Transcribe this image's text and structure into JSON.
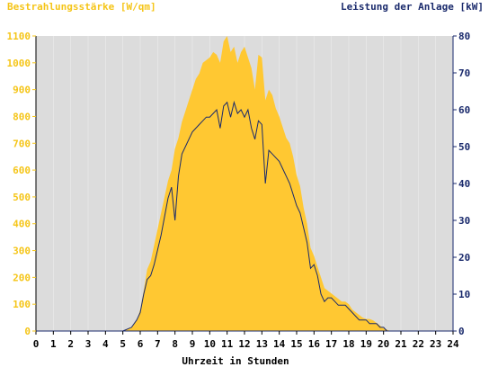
{
  "chart_data": {
    "type": "area",
    "title_left": "Bestrahlungsstärke [W/qm]",
    "title_right": "Leistung der Anlage [kW]",
    "xlabel": "Uhrzeit in Stunden",
    "xlim": [
      0,
      24
    ],
    "y_left_lim": [
      0,
      1100
    ],
    "y_right_lim": [
      0,
      80
    ],
    "x_ticks": [
      "0",
      "1",
      "2",
      "3",
      "4",
      "5",
      "6",
      "7",
      "8",
      "9",
      "10",
      "11",
      "12",
      "13",
      "14",
      "15",
      "16",
      "17",
      "18",
      "19",
      "20",
      "21",
      "22",
      "23",
      "24"
    ],
    "y_left_ticks": [
      "0",
      "100",
      "200",
      "300",
      "400",
      "500",
      "600",
      "700",
      "800",
      "900",
      "1000",
      "1100"
    ],
    "y_right_ticks": [
      "0",
      "10",
      "20",
      "30",
      "40",
      "50",
      "60",
      "70",
      "80"
    ],
    "colors": {
      "irradiance": "#ffc832",
      "power": "#1a2a6c",
      "plot_bg": "#dcdcdc",
      "left_axis": "#f5c518",
      "right_axis": "#1a2a6c"
    },
    "series": [
      {
        "name": "Bestrahlungsstärke [W/qm]",
        "axis": "left",
        "x": [
          0,
          5.0,
          5.5,
          5.8,
          6.0,
          6.2,
          6.4,
          6.6,
          6.8,
          7.0,
          7.2,
          7.4,
          7.6,
          7.8,
          8.0,
          8.2,
          8.4,
          8.6,
          8.8,
          9.0,
          9.2,
          9.4,
          9.6,
          9.8,
          10.0,
          10.2,
          10.4,
          10.6,
          10.8,
          11.0,
          11.2,
          11.4,
          11.6,
          11.8,
          12.0,
          12.2,
          12.4,
          12.6,
          12.8,
          13.0,
          13.2,
          13.4,
          13.6,
          13.8,
          14.0,
          14.2,
          14.4,
          14.6,
          14.8,
          15.0,
          15.2,
          15.4,
          15.6,
          15.8,
          16.0,
          16.2,
          16.4,
          16.6,
          16.8,
          17.0,
          17.2,
          17.4,
          17.6,
          17.8,
          18.0,
          18.2,
          18.4,
          18.6,
          18.8,
          19.0,
          19.2,
          19.4,
          19.6,
          19.8,
          20.0,
          20.2,
          20.4,
          21.0,
          24
        ],
        "values": [
          0,
          0,
          15,
          40,
          80,
          150,
          230,
          260,
          320,
          380,
          440,
          500,
          560,
          600,
          680,
          720,
          780,
          820,
          860,
          900,
          940,
          960,
          1000,
          1010,
          1020,
          1040,
          1030,
          1000,
          1080,
          1100,
          1040,
          1060,
          1000,
          1040,
          1060,
          1020,
          980,
          900,
          1030,
          1020,
          860,
          900,
          880,
          830,
          800,
          760,
          720,
          700,
          650,
          580,
          540,
          460,
          400,
          310,
          280,
          240,
          200,
          160,
          150,
          140,
          130,
          120,
          110,
          110,
          100,
          80,
          70,
          60,
          50,
          45,
          45,
          40,
          30,
          20,
          10,
          5,
          0,
          0,
          0
        ]
      },
      {
        "name": "Leistung der Anlage [kW]",
        "axis": "right",
        "x": [
          0,
          5.0,
          5.5,
          5.8,
          6.0,
          6.2,
          6.4,
          6.6,
          6.8,
          7.0,
          7.2,
          7.4,
          7.6,
          7.8,
          8.0,
          8.2,
          8.4,
          8.6,
          8.8,
          9.0,
          9.2,
          9.4,
          9.6,
          9.8,
          10.0,
          10.2,
          10.4,
          10.6,
          10.8,
          11.0,
          11.2,
          11.4,
          11.6,
          11.8,
          12.0,
          12.2,
          12.4,
          12.6,
          12.8,
          13.0,
          13.2,
          13.4,
          13.6,
          13.8,
          14.0,
          14.2,
          14.4,
          14.6,
          14.8,
          15.0,
          15.2,
          15.4,
          15.6,
          15.8,
          16.0,
          16.2,
          16.4,
          16.6,
          16.8,
          17.0,
          17.2,
          17.4,
          17.6,
          17.8,
          18.0,
          18.2,
          18.4,
          18.6,
          18.8,
          19.0,
          19.2,
          19.4,
          19.6,
          19.8,
          20.0,
          20.2,
          20.4,
          21.0,
          24
        ],
        "values": [
          0,
          0,
          1,
          3,
          5,
          10,
          14,
          15,
          18,
          22,
          26,
          31,
          36,
          39,
          30,
          42,
          48,
          50,
          52,
          54,
          55,
          56,
          57,
          58,
          58,
          59,
          60,
          55,
          61,
          62,
          58,
          62,
          59,
          60,
          58,
          60,
          55,
          52,
          57,
          56,
          40,
          49,
          48,
          47,
          46,
          44,
          42,
          40,
          37,
          34,
          32,
          28,
          24,
          17,
          18,
          15,
          10,
          8,
          9,
          9,
          8,
          7,
          7,
          7,
          6,
          5,
          4,
          3,
          3,
          3,
          2,
          2,
          2,
          1,
          1,
          0,
          0,
          0,
          0
        ]
      }
    ]
  }
}
